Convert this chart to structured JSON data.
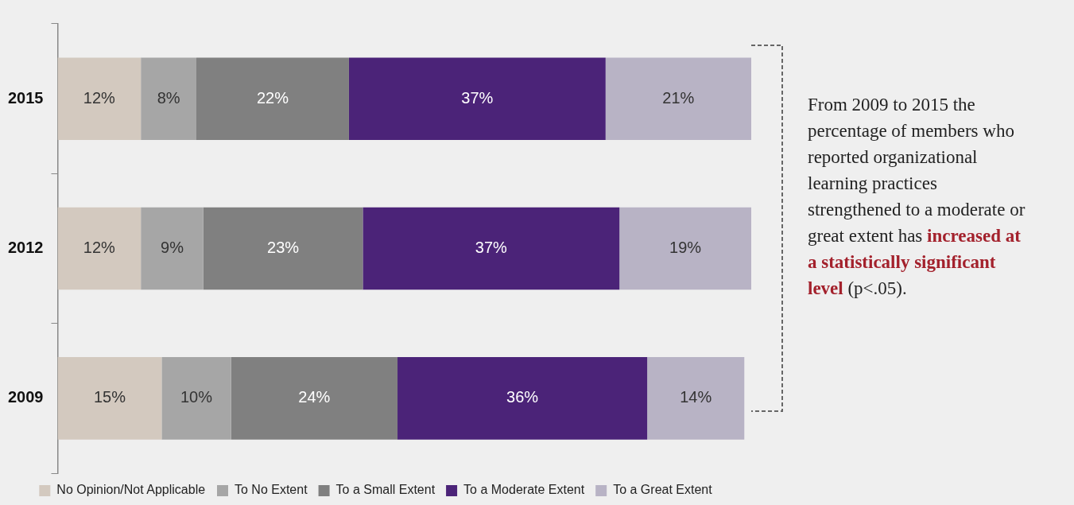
{
  "chart_data": {
    "type": "bar",
    "orientation": "horizontal",
    "stacked": true,
    "categories": [
      "2015",
      "2012",
      "2009"
    ],
    "series": [
      {
        "name": "No Opinion/Not Applicable",
        "color": "#d3c9bf",
        "values": [
          12,
          12,
          15
        ],
        "value_labels": [
          "12%",
          "12%",
          "15%"
        ]
      },
      {
        "name": "To No Extent",
        "color": "#a6a6a6",
        "values": [
          8,
          9,
          10
        ],
        "value_labels": [
          "8%",
          "9%",
          "10%"
        ]
      },
      {
        "name": "To a Small Extent",
        "color": "#808080",
        "values": [
          22,
          23,
          24
        ],
        "value_labels": [
          "22%",
          "23%",
          "24%"
        ]
      },
      {
        "name": "To a Moderate Extent",
        "color": "#4b2378",
        "values": [
          37,
          37,
          36
        ],
        "value_labels": [
          "37%",
          "37%",
          "36%"
        ]
      },
      {
        "name": "To a Great Extent",
        "color": "#b8b3c5",
        "values": [
          21,
          19,
          14
        ],
        "value_labels": [
          "21%",
          "19%",
          "14%"
        ]
      }
    ],
    "legend": "bottom",
    "grid": false,
    "annotations": [
      "From 2009 to 2015 the percentage of members who reported organizational learning practices strengthened to a moderate or great extent has",
      "increased at a statistically significant level",
      "(p<.05)."
    ]
  }
}
